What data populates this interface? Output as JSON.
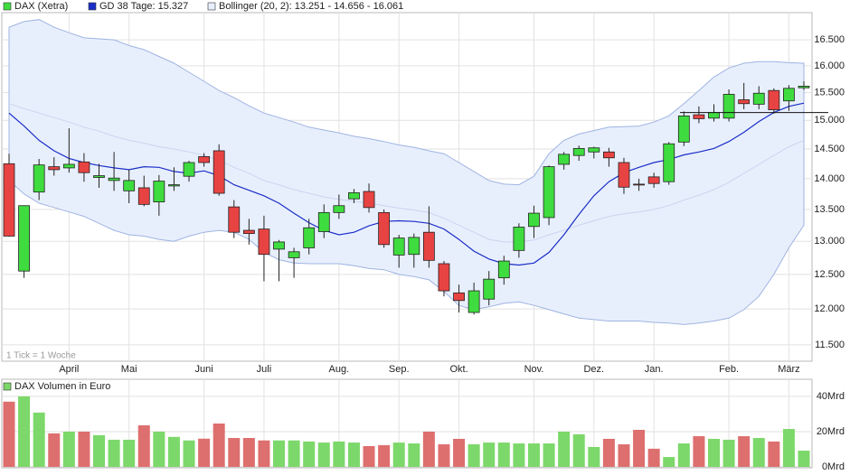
{
  "chart_data": [
    {
      "type": "candlestick",
      "name": "DAX (Xetra)",
      "note": "1 Tick = 1 Woche",
      "categories": [
        null,
        null,
        null,
        null,
        "April",
        null,
        null,
        null,
        "Mai",
        null,
        null,
        null,
        null,
        "Juni",
        null,
        null,
        null,
        "Juli",
        null,
        null,
        null,
        null,
        "Aug.",
        null,
        null,
        null,
        "Sep.",
        null,
        null,
        null,
        "Okt.",
        null,
        null,
        null,
        null,
        "Nov.",
        null,
        null,
        null,
        "Dez.",
        null,
        null,
        null,
        "Jan.",
        null,
        null,
        null,
        null,
        "Feb.",
        null,
        null,
        null,
        "März",
        null
      ],
      "open": [
        14250,
        12550,
        13780,
        14200,
        14180,
        14280,
        14020,
        13970,
        13800,
        13850,
        13620,
        13880,
        14040,
        14370,
        14470,
        13540,
        13170,
        13190,
        12880,
        12750,
        12900,
        13150,
        13450,
        13670,
        13790,
        13450,
        12790,
        12800,
        13140,
        12660,
        12230,
        11950,
        12140,
        12450,
        12860,
        13230,
        13370,
        14240,
        14390,
        14450,
        14450,
        14270,
        13910,
        14030,
        13950,
        14620,
        15100,
        15040,
        15040,
        15370,
        15290,
        15540,
        15350,
        15590
      ],
      "high": [
        14420,
        13560,
        14330,
        14360,
        14860,
        14430,
        14250,
        14450,
        14150,
        14050,
        14060,
        14190,
        14300,
        14430,
        14580,
        13650,
        13350,
        13400,
        13020,
        12900,
        13350,
        13580,
        13740,
        13830,
        13920,
        13500,
        13100,
        13120,
        13550,
        12700,
        12350,
        12380,
        12550,
        12780,
        13280,
        13560,
        14220,
        14450,
        14560,
        14540,
        14520,
        14350,
        14000,
        14100,
        14620,
        15160,
        15250,
        15290,
        15560,
        15680,
        15620,
        15580,
        15640,
        15710
      ],
      "low": [
        13070,
        12450,
        13650,
        14050,
        14100,
        13950,
        13850,
        13800,
        13600,
        13550,
        13400,
        13800,
        13950,
        14200,
        13720,
        13050,
        12950,
        12400,
        12400,
        12450,
        12800,
        13050,
        13350,
        13600,
        13450,
        12900,
        12600,
        12600,
        12600,
        12180,
        11950,
        11920,
        12050,
        12350,
        12750,
        13050,
        13250,
        14150,
        14300,
        14340,
        14200,
        13750,
        13800,
        13850,
        13900,
        14550,
        14950,
        14980,
        14980,
        15200,
        15200,
        15120,
        15170,
        15550
      ],
      "close": [
        13080,
        13560,
        14230,
        14150,
        14240,
        14100,
        14050,
        14010,
        13970,
        13580,
        13960,
        13900,
        14270,
        14270,
        13760,
        13140,
        13120,
        12800,
        12990,
        12840,
        13210,
        13450,
        13560,
        13770,
        13530,
        12950,
        13050,
        13060,
        12710,
        12260,
        12120,
        12260,
        12430,
        12700,
        13220,
        13440,
        14200,
        14410,
        14510,
        14520,
        14350,
        13860,
        13900,
        13920,
        14590,
        15080,
        15030,
        15140,
        15470,
        15300,
        15490,
        15190,
        15580,
        15620
      ],
      "up_color": "#3fdc3f",
      "down_color": "#e84343",
      "series": [
        {
          "name": "GD 38 Tage: 15.327",
          "color": "#1a2ec8",
          "values": [
            15130,
            14900,
            14650,
            14470,
            14340,
            14270,
            14220,
            14180,
            14150,
            14200,
            14190,
            14120,
            14090,
            14130,
            14050,
            13900,
            13810,
            13720,
            13600,
            13440,
            13290,
            13170,
            13100,
            13140,
            13240,
            13310,
            13320,
            13310,
            13280,
            13190,
            13030,
            12850,
            12730,
            12660,
            12640,
            12670,
            12830,
            13100,
            13420,
            13720,
            13950,
            14100,
            14190,
            14270,
            14320,
            14400,
            14450,
            14510,
            14630,
            14790,
            14980,
            15140,
            15250,
            15310
          ]
        }
      ],
      "bands": {
        "name": "Bollinger (20, 2): 13.251 - 14.656 - 16.061",
        "color": "#9fb4e2",
        "fill": "#e8effc",
        "middle_color": "#c9d5f0",
        "upper": [
          16750,
          16860,
          16900,
          16750,
          16640,
          16540,
          16520,
          16500,
          16390,
          16310,
          16180,
          16050,
          15880,
          15710,
          15540,
          15410,
          15260,
          15130,
          15050,
          14970,
          14880,
          14830,
          14780,
          14720,
          14680,
          14630,
          14570,
          14530,
          14470,
          14420,
          14270,
          14120,
          13970,
          13910,
          13900,
          14040,
          14420,
          14650,
          14760,
          14820,
          14880,
          14890,
          14900,
          14970,
          15080,
          15300,
          15540,
          15790,
          15960,
          16050,
          16080,
          16080,
          16060,
          16050
        ],
        "middle": [
          15300,
          15210,
          15130,
          15050,
          14970,
          14880,
          14810,
          14720,
          14650,
          14600,
          14540,
          14500,
          14450,
          14390,
          14310,
          14190,
          14090,
          13970,
          13900,
          13820,
          13760,
          13700,
          13660,
          13630,
          13600,
          13560,
          13520,
          13490,
          13450,
          13360,
          13250,
          13140,
          13030,
          12990,
          12990,
          13020,
          13100,
          13170,
          13250,
          13320,
          13390,
          13430,
          13460,
          13500,
          13560,
          13650,
          13730,
          13820,
          13940,
          14090,
          14240,
          14390,
          14540,
          14650
        ],
        "lower": [
          13970,
          13750,
          13600,
          13530,
          13460,
          13390,
          13280,
          13170,
          13100,
          13080,
          13030,
          13000,
          13080,
          13140,
          13170,
          13140,
          13030,
          12830,
          12720,
          12670,
          12660,
          12660,
          12660,
          12630,
          12590,
          12570,
          12500,
          12470,
          12420,
          12250,
          12050,
          11990,
          12030,
          12080,
          12100,
          12050,
          11990,
          11930,
          11870,
          11850,
          11830,
          11830,
          11830,
          11810,
          11800,
          11780,
          11800,
          11830,
          11870,
          11990,
          12180,
          12500,
          12900,
          13250
        ]
      },
      "hline": 15140,
      "ylim": [
        11280,
        17040
      ],
      "log_scale": true,
      "grid": true,
      "yticks": [
        {
          "value": 11500,
          "label": "11.500"
        },
        {
          "value": 12000,
          "label": "12.000"
        },
        {
          "value": 12500,
          "label": "12.500"
        },
        {
          "value": 13000,
          "label": "13.000"
        },
        {
          "value": 13500,
          "label": "13.500"
        },
        {
          "value": 14000,
          "label": "14.000"
        },
        {
          "value": 14500,
          "label": "14.500"
        },
        {
          "value": 15000,
          "label": "15.000"
        },
        {
          "value": 15500,
          "label": "15.500"
        },
        {
          "value": 16000,
          "label": "16.000"
        },
        {
          "value": 16500,
          "label": "16.500"
        }
      ]
    },
    {
      "type": "bar",
      "name": "DAX Volumen in Euro",
      "up_color": "#7cd86a",
      "down_color": "#de6f6f",
      "values": [
        37,
        40,
        30.8,
        19,
        20,
        20,
        18,
        15.4,
        15.4,
        23.6,
        20,
        17,
        15,
        16,
        24.6,
        16.4,
        16.4,
        15,
        15,
        15,
        14.4,
        13.8,
        14.4,
        13.8,
        11.8,
        12.3,
        13.8,
        13.3,
        20,
        12.8,
        15.9,
        12.8,
        13.8,
        13.8,
        13.3,
        13.3,
        13.3,
        20,
        18.5,
        11.3,
        15.9,
        12.8,
        21,
        10.3,
        5.6,
        13.3,
        17.4,
        15.9,
        15.4,
        17.4,
        16.4,
        14.4,
        21.5,
        9.2
      ],
      "ylim": [
        0,
        49.7
      ],
      "grid": true,
      "yticks": [
        {
          "value": 0,
          "label": "0Mrd"
        },
        {
          "value": 20,
          "label": "20Mrd"
        },
        {
          "value": 40,
          "label": "40Mrd"
        }
      ]
    }
  ]
}
